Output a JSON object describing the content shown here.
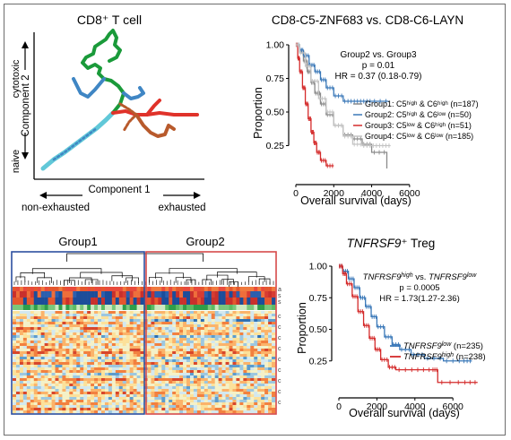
{
  "panel_a": {
    "title": "CD8⁺ T cell",
    "y_axis": {
      "label": "Component 2",
      "top": "cytotoxic",
      "bottom": "naive"
    },
    "x_axis": {
      "label": "Component 1",
      "left": "non-exhausted",
      "right": "exhausted"
    },
    "branch_colors": {
      "green": "#1a9a3a",
      "blue": "#3f86c4",
      "red": "#e0322a",
      "cyan": "#61c8d8",
      "brown": "#b85a2c"
    }
  },
  "panel_b": {
    "title": "CD8-C5-ZNF683 vs. CD8-C6-LAYN",
    "stats": {
      "comparison": "Group2 vs. Group3",
      "p": "p = 0.01",
      "hr": "HR = 0.37 (0.18-0.79)"
    },
    "legend": [
      {
        "label": "Group1: C5ʰⁱᵍʰ & C6ʰⁱᵍʰ (n=187)",
        "color": "#8a8a8a"
      },
      {
        "label": "Group2: C5ʰⁱᵍʰ & C6ˡᵒʷ (n=50)",
        "color": "#3a78b8"
      },
      {
        "label": "Group3: C5ˡᵒʷ & C6ʰⁱᵍʰ (n=51)",
        "color": "#d42a2a"
      },
      {
        "label": "Group4: C5ˡᵒʷ & C6ˡᵒʷ (n=185)",
        "color": "#c4c4c4"
      }
    ]
  },
  "panel_c": {
    "group1": "Group1",
    "group2": "Group2",
    "row_labels": [
      "a",
      "s",
      "s",
      "c",
      "c",
      "c",
      "c",
      "c",
      "c",
      "c",
      "c",
      "c"
    ]
  },
  "panel_d": {
    "title_gene": "TNFRSF9",
    "title_rest": "⁺ Treg",
    "stats": {
      "comparison_a": "TNFRSF9",
      "comparison_a_sup": "high",
      "comparison_mid": " vs. ",
      "comparison_b": "TNFRSF9",
      "comparison_b_sup": "low",
      "p": "p = 0.0005",
      "hr": "HR = 1.73(1.27-2.36)"
    },
    "legend": [
      {
        "gene": "TNFRSF9",
        "sup": "low",
        "n": " (n=235)",
        "color": "#3a78b8"
      },
      {
        "gene": "TNFRSF9",
        "sup": "high",
        "n": " (n=238)",
        "color": "#d42a2a"
      }
    ]
  },
  "chart_data": [
    {
      "type": "line",
      "title": "CD8-C5-ZNF683 vs. CD8-C6-LAYN",
      "xlabel": "Overall survival (days)",
      "ylabel": "Proportion",
      "xlim": [
        0,
        7000
      ],
      "ylim": [
        0,
        1.0
      ],
      "x_ticks": [
        0,
        2000,
        4000,
        6000
      ],
      "x_tick_labels": [
        "0",
        "2000",
        "4000",
        "6000"
      ],
      "y_ticks": [
        0.25,
        0.5,
        0.75,
        1.0
      ],
      "y_tick_labels": [
        "0.25",
        "0.50",
        "0.75",
        "1.00"
      ],
      "series": [
        {
          "name": "Group1: C5ʰⁱᵍʰ & C6ʰⁱᵍʰ (n=187)",
          "color": "#8a8a8a",
          "x": [
            0,
            200,
            400,
            600,
            800,
            1000,
            1300,
            1600,
            2000,
            2500,
            3000,
            3500,
            4000,
            4800
          ],
          "y": [
            1.0,
            0.95,
            0.88,
            0.8,
            0.72,
            0.64,
            0.56,
            0.48,
            0.4,
            0.33,
            0.3,
            0.26,
            0.2,
            0.08
          ]
        },
        {
          "name": "Group2: C5ʰⁱᵍʰ & C6ˡᵒʷ (n=50)",
          "color": "#3a78b8",
          "x": [
            0,
            200,
            400,
            700,
            1000,
            1300,
            1600,
            2000,
            2500,
            3000,
            3500,
            4000,
            4900
          ],
          "y": [
            1.0,
            0.96,
            0.92,
            0.85,
            0.8,
            0.74,
            0.68,
            0.62,
            0.58,
            0.58,
            0.58,
            0.58,
            0.58
          ]
        },
        {
          "name": "Group3: C5ˡᵒʷ & C6ʰⁱᵍʰ (n=51)",
          "color": "#d42a2a",
          "x": [
            0,
            100,
            200,
            350,
            500,
            650,
            800,
            950,
            1100,
            1300,
            1600,
            2000
          ],
          "y": [
            1.0,
            0.9,
            0.8,
            0.68,
            0.56,
            0.45,
            0.35,
            0.27,
            0.2,
            0.14,
            0.1,
            0.1
          ]
        },
        {
          "name": "Group4: C5ˡᵒʷ & C6ˡᵒʷ (n=185)",
          "color": "#c4c4c4",
          "x": [
            0,
            200,
            500,
            800,
            1200,
            1600,
            2000,
            2500,
            3000,
            3500,
            4000,
            4500,
            5000
          ],
          "y": [
            1.0,
            0.94,
            0.84,
            0.73,
            0.6,
            0.5,
            0.4,
            0.32,
            0.26,
            0.25,
            0.25,
            0.25,
            0.25
          ]
        }
      ]
    },
    {
      "type": "line",
      "title": "TNFRSF9⁺ Treg",
      "xlabel": "Overall survival (days)",
      "ylabel": "Proportion",
      "xlim": [
        0,
        7500
      ],
      "ylim": [
        0,
        1.0
      ],
      "x_ticks": [
        0,
        2000,
        4000,
        6000
      ],
      "x_tick_labels": [
        "0",
        "2000",
        "4000",
        "6000"
      ],
      "y_ticks": [
        0.25,
        0.5,
        0.75,
        1.0
      ],
      "y_tick_labels": [
        "0.25",
        "0.50",
        "0.75",
        "1.00"
      ],
      "series": [
        {
          "name": "TNFRSF9ˡᵒʷ (n=235)",
          "color": "#3a78b8",
          "x": [
            0,
            200,
            500,
            800,
            1100,
            1400,
            1700,
            2000,
            2400,
            2800,
            3200,
            3800,
            4500,
            5500,
            6500,
            7000
          ],
          "y": [
            1.0,
            0.96,
            0.9,
            0.83,
            0.75,
            0.68,
            0.6,
            0.52,
            0.44,
            0.38,
            0.34,
            0.3,
            0.27,
            0.25,
            0.25,
            0.25
          ]
        },
        {
          "name": "TNFRSF9ʰⁱᵍʰ (n=238)",
          "color": "#d42a2a",
          "x": [
            0,
            200,
            400,
            700,
            1000,
            1300,
            1600,
            1900,
            2200,
            2600,
            3000,
            4000,
            4900,
            5200,
            6500,
            7300
          ],
          "y": [
            1.0,
            0.94,
            0.86,
            0.76,
            0.64,
            0.53,
            0.43,
            0.34,
            0.26,
            0.2,
            0.18,
            0.18,
            0.18,
            0.08,
            0.08,
            0.08
          ]
        }
      ]
    }
  ]
}
